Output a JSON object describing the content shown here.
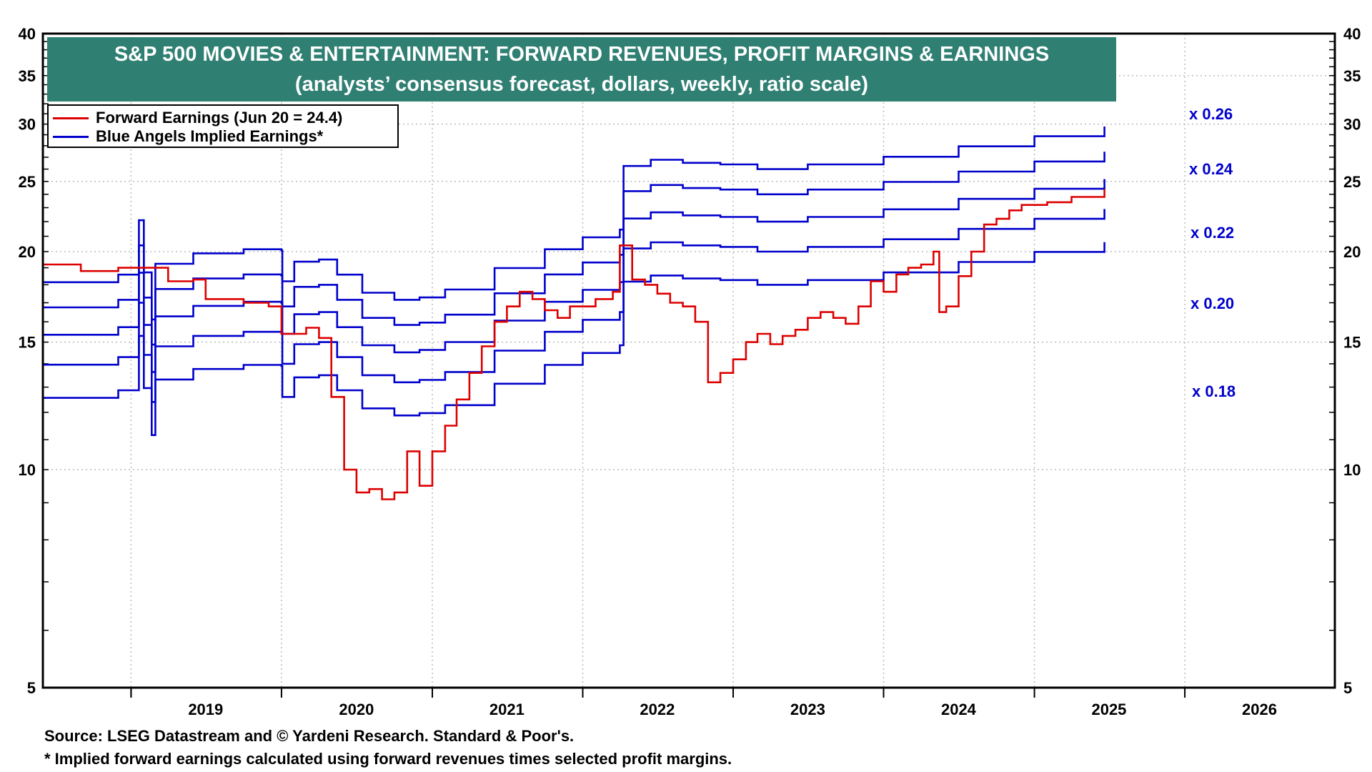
{
  "title": {
    "line1": "S&P 500 MOVIES & ENTERTAINMENT: FORWARD REVENUES, PROFIT MARGINS & EARNINGS",
    "line2": "(analysts’ consensus forecast, dollars, weekly, ratio scale)"
  },
  "legend": [
    {
      "label": "Forward Earnings (Jun 20 = 24.4)",
      "color": "#dd0000"
    },
    {
      "label": "Blue Angels Implied Earnings*",
      "color": "#0000cc"
    }
  ],
  "footnotes": {
    "source": "Source: LSEG Datastream and © Yardeni Research. Standard & Poor's.",
    "note": "* Implied forward earnings calculated using forward revenues times selected profit margins."
  },
  "colors": {
    "earnings": "#dd0000",
    "implied": "#0000cc",
    "frame": "#000000",
    "grid": "#bbbbbb",
    "title_bg": "#2f7f72"
  },
  "chart_data": {
    "type": "line",
    "y_scale": "log",
    "ylim": [
      5,
      40
    ],
    "y_ticks": [
      "5",
      "10",
      "15",
      "20",
      "25",
      "30",
      "35",
      "40"
    ],
    "x_range": [
      "2018-06",
      "2026-12"
    ],
    "x_tick_labels": [
      "2019",
      "2020",
      "2021",
      "2022",
      "2023",
      "2024",
      "2025",
      "2026"
    ],
    "grid": true,
    "legend_position": "top-left",
    "forward_revenues": [
      {
        "x": "2018-06-01",
        "y": 69.8
      },
      {
        "x": "2018-12-01",
        "y": 71.5
      },
      {
        "x": "2019-01-20",
        "y": 85.0
      },
      {
        "x": "2019-02-01",
        "y": 72.0
      },
      {
        "x": "2019-02-20",
        "y": 62.0
      },
      {
        "x": "2019-03-01",
        "y": 74.0
      },
      {
        "x": "2019-06-01",
        "y": 76.5
      },
      {
        "x": "2019-10-01",
        "y": 77.5
      },
      {
        "x": "2020-01-01",
        "y": 77.2
      },
      {
        "x": "2020-01-03",
        "y": 70.0
      },
      {
        "x": "2020-02-01",
        "y": 74.5
      },
      {
        "x": "2020-04-01",
        "y": 75.0
      },
      {
        "x": "2020-05-15",
        "y": 71.5
      },
      {
        "x": "2020-07-15",
        "y": 67.5
      },
      {
        "x": "2020-10-01",
        "y": 66.0
      },
      {
        "x": "2020-12-01",
        "y": 66.5
      },
      {
        "x": "2021-02-01",
        "y": 68.2
      },
      {
        "x": "2021-06-01",
        "y": 73.0
      },
      {
        "x": "2021-10-01",
        "y": 77.5
      },
      {
        "x": "2022-01-01",
        "y": 80.5
      },
      {
        "x": "2022-04-01",
        "y": 82.5
      },
      {
        "x": "2022-04-10",
        "y": 101.0
      },
      {
        "x": "2022-06-15",
        "y": 103.0
      },
      {
        "x": "2022-09-01",
        "y": 102.0
      },
      {
        "x": "2022-12-01",
        "y": 101.5
      },
      {
        "x": "2023-03-01",
        "y": 100.0
      },
      {
        "x": "2023-07-01",
        "y": 101.5
      },
      {
        "x": "2024-01-01",
        "y": 104.0
      },
      {
        "x": "2024-07-01",
        "y": 107.5
      },
      {
        "x": "2025-01-01",
        "y": 111.0
      },
      {
        "x": "2025-06-20",
        "y": 114.5
      }
    ],
    "series": [
      {
        "name": "Forward Earnings (Jun 20 = 24.4)",
        "points": [
          {
            "x": "2018-06-01",
            "y": 19.2
          },
          {
            "x": "2018-09-01",
            "y": 18.8
          },
          {
            "x": "2018-12-01",
            "y": 19.0
          },
          {
            "x": "2019-03-01",
            "y": 19.0
          },
          {
            "x": "2019-04-01",
            "y": 18.2
          },
          {
            "x": "2019-06-01",
            "y": 18.3
          },
          {
            "x": "2019-07-01",
            "y": 17.2
          },
          {
            "x": "2019-10-01",
            "y": 17.0
          },
          {
            "x": "2019-12-01",
            "y": 16.8
          },
          {
            "x": "2020-01-01",
            "y": 15.4
          },
          {
            "x": "2020-03-01",
            "y": 15.7
          },
          {
            "x": "2020-04-01",
            "y": 15.2
          },
          {
            "x": "2020-05-01",
            "y": 12.6
          },
          {
            "x": "2020-06-01",
            "y": 10.0
          },
          {
            "x": "2020-07-01",
            "y": 9.3
          },
          {
            "x": "2020-08-01",
            "y": 9.4
          },
          {
            "x": "2020-09-01",
            "y": 9.1
          },
          {
            "x": "2020-10-01",
            "y": 9.3
          },
          {
            "x": "2020-11-01",
            "y": 10.6
          },
          {
            "x": "2020-12-01",
            "y": 9.5
          },
          {
            "x": "2021-01-01",
            "y": 10.6
          },
          {
            "x": "2021-02-01",
            "y": 11.5
          },
          {
            "x": "2021-03-01",
            "y": 12.5
          },
          {
            "x": "2021-04-01",
            "y": 13.6
          },
          {
            "x": "2021-05-01",
            "y": 14.8
          },
          {
            "x": "2021-06-01",
            "y": 16.0
          },
          {
            "x": "2021-07-01",
            "y": 16.8
          },
          {
            "x": "2021-08-01",
            "y": 17.6
          },
          {
            "x": "2021-09-01",
            "y": 17.2
          },
          {
            "x": "2021-10-01",
            "y": 16.6
          },
          {
            "x": "2021-11-01",
            "y": 16.2
          },
          {
            "x": "2021-12-01",
            "y": 16.8
          },
          {
            "x": "2022-02-01",
            "y": 17.2
          },
          {
            "x": "2022-03-15",
            "y": 17.6
          },
          {
            "x": "2022-04-01",
            "y": 20.4
          },
          {
            "x": "2022-05-01",
            "y": 18.3
          },
          {
            "x": "2022-06-01",
            "y": 18.0
          },
          {
            "x": "2022-07-01",
            "y": 17.5
          },
          {
            "x": "2022-08-01",
            "y": 17.0
          },
          {
            "x": "2022-09-01",
            "y": 16.8
          },
          {
            "x": "2022-10-01",
            "y": 16.0
          },
          {
            "x": "2022-11-01",
            "y": 13.2
          },
          {
            "x": "2022-12-01",
            "y": 13.6
          },
          {
            "x": "2023-01-01",
            "y": 14.2
          },
          {
            "x": "2023-02-01",
            "y": 15.0
          },
          {
            "x": "2023-03-01",
            "y": 15.4
          },
          {
            "x": "2023-04-01",
            "y": 14.9
          },
          {
            "x": "2023-05-01",
            "y": 15.3
          },
          {
            "x": "2023-06-01",
            "y": 15.6
          },
          {
            "x": "2023-07-01",
            "y": 16.2
          },
          {
            "x": "2023-08-01",
            "y": 16.5
          },
          {
            "x": "2023-09-01",
            "y": 16.2
          },
          {
            "x": "2023-10-01",
            "y": 15.9
          },
          {
            "x": "2023-11-01",
            "y": 16.8
          },
          {
            "x": "2023-12-01",
            "y": 18.2
          },
          {
            "x": "2024-01-01",
            "y": 17.6
          },
          {
            "x": "2024-02-01",
            "y": 18.6
          },
          {
            "x": "2024-03-01",
            "y": 19.0
          },
          {
            "x": "2024-04-01",
            "y": 19.2
          },
          {
            "x": "2024-05-01",
            "y": 20.0
          },
          {
            "x": "2024-05-15",
            "y": 16.5
          },
          {
            "x": "2024-06-01",
            "y": 16.8
          },
          {
            "x": "2024-07-01",
            "y": 18.5
          },
          {
            "x": "2024-08-01",
            "y": 20.0
          },
          {
            "x": "2024-09-01",
            "y": 21.8
          },
          {
            "x": "2024-10-01",
            "y": 22.2
          },
          {
            "x": "2024-11-01",
            "y": 22.8
          },
          {
            "x": "2024-12-01",
            "y": 23.2
          },
          {
            "x": "2025-02-01",
            "y": 23.4
          },
          {
            "x": "2025-04-01",
            "y": 23.8
          },
          {
            "x": "2025-06-20",
            "y": 24.4
          }
        ]
      }
    ],
    "implied_margins": [
      {
        "label": "x 0.26",
        "margin": 0.26
      },
      {
        "label": "x 0.24",
        "margin": 0.24
      },
      {
        "label": "x 0.22",
        "margin": 0.22
      },
      {
        "label": "x 0.20",
        "margin": 0.2
      },
      {
        "label": "x 0.18",
        "margin": 0.18
      }
    ]
  }
}
